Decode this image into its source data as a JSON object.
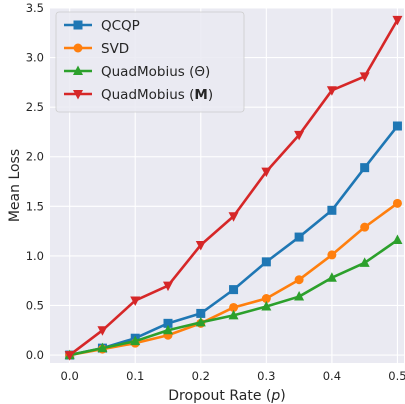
{
  "chart_data": {
    "type": "line",
    "xlabel": "Dropout Rate (p)",
    "ylabel": "Mean Loss",
    "xlim": [
      -0.03,
      0.51
    ],
    "ylim": [
      -0.08,
      3.5
    ],
    "xticks": [
      0.0,
      0.1,
      0.2,
      0.3,
      0.4,
      0.5
    ],
    "xtick_labels": [
      "0.0",
      "0.1",
      "0.2",
      "0.3",
      "0.4",
      "0.5"
    ],
    "yticks": [
      0.0,
      0.5,
      1.0,
      1.5,
      2.0,
      2.5,
      3.0,
      3.5
    ],
    "ytick_labels": [
      "0.0",
      "0.5",
      "1.0",
      "1.5",
      "2.0",
      "2.5",
      "3.0",
      "3.5"
    ],
    "grid": true,
    "legend_position": "top-left",
    "x": [
      0.0,
      0.05,
      0.1,
      0.15,
      0.2,
      0.25,
      0.3,
      0.35,
      0.4,
      0.45,
      0.5
    ],
    "series": [
      {
        "name": "QCQP",
        "marker": "square",
        "color": "#1f77b4",
        "values": [
          0.0,
          0.07,
          0.17,
          0.32,
          0.42,
          0.66,
          0.94,
          1.19,
          1.46,
          1.89,
          2.31
        ]
      },
      {
        "name": "SVD",
        "marker": "circle",
        "color": "#ff7f0e",
        "values": [
          0.0,
          0.06,
          0.12,
          0.2,
          0.32,
          0.48,
          0.57,
          0.76,
          1.01,
          1.29,
          1.53
        ]
      },
      {
        "name": "QuadMobius (Θ)",
        "marker": "triangle-up",
        "color": "#2ca02c",
        "values": [
          0.0,
          0.07,
          0.14,
          0.25,
          0.33,
          0.4,
          0.49,
          0.59,
          0.78,
          0.93,
          1.16
        ]
      },
      {
        "name": "QuadMobius (M)",
        "marker": "triangle-down",
        "color": "#d62728",
        "values": [
          0.0,
          0.25,
          0.55,
          0.7,
          1.11,
          1.4,
          1.85,
          2.22,
          2.67,
          2.81,
          3.38
        ]
      }
    ]
  }
}
